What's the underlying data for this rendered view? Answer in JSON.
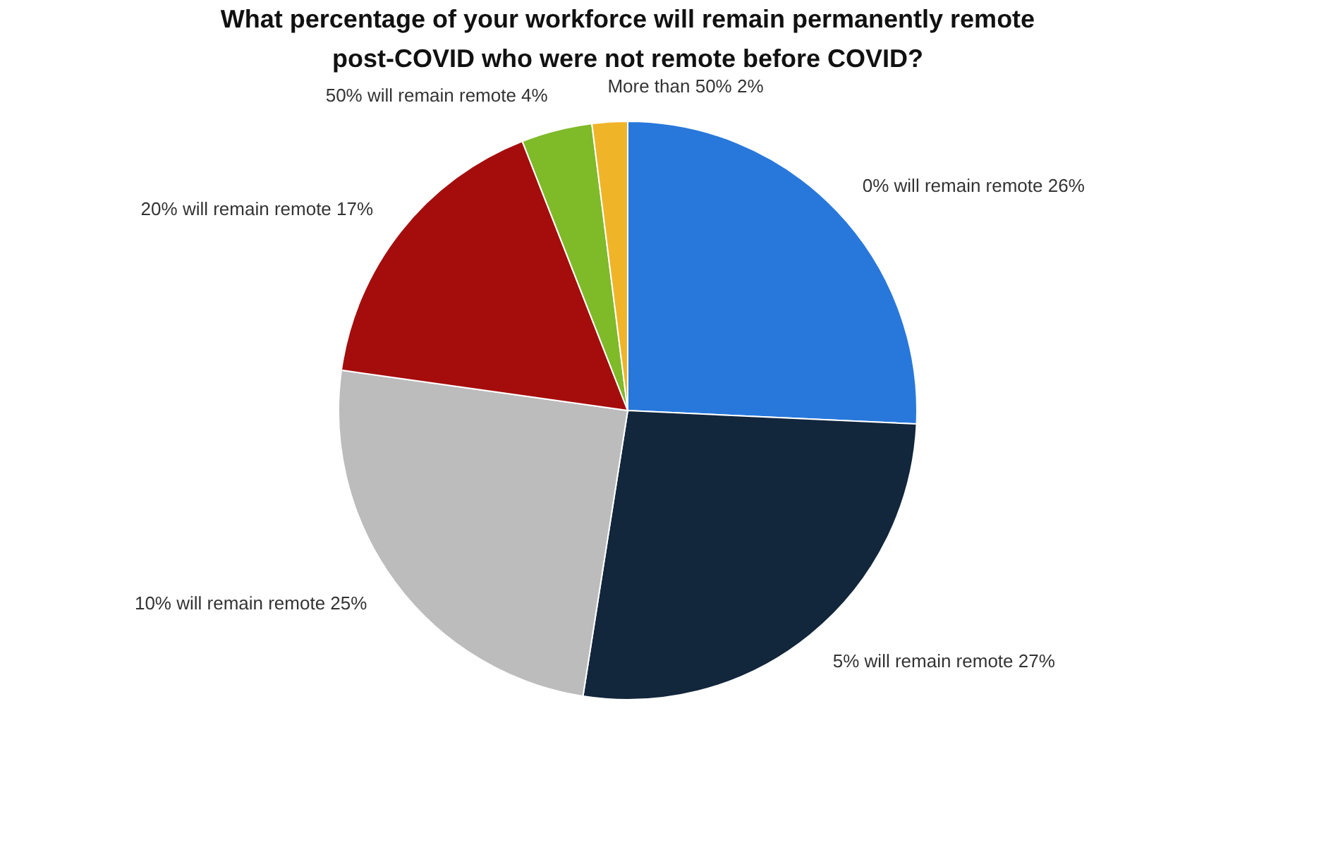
{
  "chart_data": {
    "type": "pie",
    "title": "What percentage of your workforce will remain permanently remote post-COVID who were not remote before COVID?",
    "categories": [
      "0% will remain remote",
      "5% will remain remote",
      "10% will remain remote",
      "20% will remain remote",
      "50% will remain remote",
      "More than 50%"
    ],
    "values": [
      26,
      27,
      25,
      17,
      4,
      2
    ],
    "value_labels": [
      "26%",
      "27%",
      "25%",
      "17%",
      "4%",
      "2%"
    ],
    "colors": [
      "#2878dc",
      "#12263c",
      "#bcbcbc",
      "#a50d0d",
      "#7fba28",
      "#f0b428"
    ],
    "legend": false
  }
}
